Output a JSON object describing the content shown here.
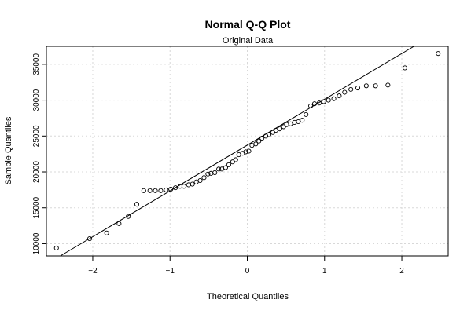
{
  "chart_data": {
    "type": "scatter",
    "title": "Normal Q-Q Plot",
    "subtitle": "Original Data",
    "xlabel": "Theoretical Quantiles",
    "ylabel": "Sample Quantiles",
    "xlim": [
      -2.6,
      2.6
    ],
    "ylim": [
      8300,
      37500
    ],
    "x_ticks": [
      -2,
      -1,
      0,
      1,
      2
    ],
    "x_tick_labels": [
      "−2",
      "−1",
      "0",
      "1",
      "2"
    ],
    "y_ticks": [
      10000,
      15000,
      20000,
      25000,
      30000,
      35000
    ],
    "y_tick_labels": [
      "10000",
      "15000",
      "20000",
      "25000",
      "30000",
      "35000"
    ],
    "grid": true,
    "reference_line": {
      "intercept": 23740,
      "slope": 6380
    },
    "points": [
      [
        -2.47,
        9400
      ],
      [
        -2.04,
        10700
      ],
      [
        -1.82,
        11500
      ],
      [
        -1.66,
        12800
      ],
      [
        -1.54,
        13800
      ],
      [
        -1.43,
        15500
      ],
      [
        -1.34,
        17400
      ],
      [
        -1.26,
        17400
      ],
      [
        -1.19,
        17400
      ],
      [
        -1.12,
        17400
      ],
      [
        -1.05,
        17500
      ],
      [
        -0.99,
        17600
      ],
      [
        -0.93,
        17800
      ],
      [
        -0.87,
        18000
      ],
      [
        -0.82,
        18000
      ],
      [
        -0.76,
        18200
      ],
      [
        -0.71,
        18300
      ],
      [
        -0.66,
        18600
      ],
      [
        -0.61,
        18800
      ],
      [
        -0.56,
        19200
      ],
      [
        -0.51,
        19700
      ],
      [
        -0.47,
        19800
      ],
      [
        -0.42,
        19900
      ],
      [
        -0.37,
        20400
      ],
      [
        -0.33,
        20400
      ],
      [
        -0.28,
        20600
      ],
      [
        -0.24,
        21000
      ],
      [
        -0.19,
        21400
      ],
      [
        -0.15,
        21700
      ],
      [
        -0.11,
        22400
      ],
      [
        -0.06,
        22600
      ],
      [
        -0.02,
        22800
      ],
      [
        0.02,
        22900
      ],
      [
        0.06,
        23700
      ],
      [
        0.11,
        23900
      ],
      [
        0.15,
        24300
      ],
      [
        0.19,
        24700
      ],
      [
        0.24,
        25000
      ],
      [
        0.28,
        25200
      ],
      [
        0.33,
        25500
      ],
      [
        0.37,
        25800
      ],
      [
        0.42,
        26000
      ],
      [
        0.47,
        26300
      ],
      [
        0.51,
        26600
      ],
      [
        0.56,
        26700
      ],
      [
        0.61,
        26900
      ],
      [
        0.66,
        27000
      ],
      [
        0.71,
        27200
      ],
      [
        0.76,
        28000
      ],
      [
        0.82,
        29200
      ],
      [
        0.87,
        29500
      ],
      [
        0.93,
        29600
      ],
      [
        0.99,
        29800
      ],
      [
        1.05,
        30000
      ],
      [
        1.12,
        30200
      ],
      [
        1.19,
        30600
      ],
      [
        1.26,
        31100
      ],
      [
        1.34,
        31500
      ],
      [
        1.43,
        31700
      ],
      [
        1.54,
        32000
      ],
      [
        1.66,
        32000
      ],
      [
        1.82,
        32100
      ],
      [
        2.04,
        34500
      ],
      [
        2.47,
        36500
      ]
    ]
  }
}
